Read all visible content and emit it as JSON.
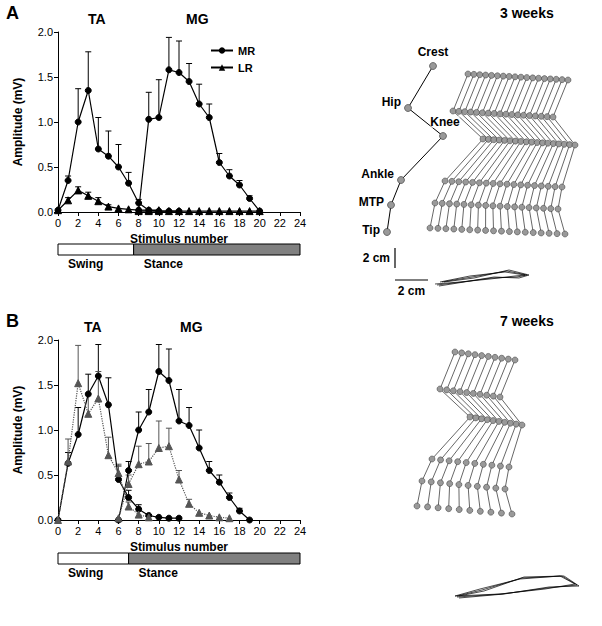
{
  "chart_data": [
    {
      "type": "line",
      "panel": "A",
      "title": "3 weeks",
      "annotations": [
        "TA",
        "MG"
      ],
      "xlabel": "Stimulus number",
      "ylabel": "Amplitude (mV)",
      "xlim": [
        0,
        24
      ],
      "xticks": [
        0,
        2,
        4,
        6,
        8,
        10,
        12,
        14,
        16,
        18,
        20,
        22,
        24
      ],
      "ylim": [
        0,
        2
      ],
      "yticks": [
        {
          "value": 0,
          "label": "0.0"
        },
        {
          "value": 0.5,
          "label": "0.5"
        },
        {
          "value": 1,
          "label": "1.0"
        },
        {
          "value": 1.5,
          "label": "1.5"
        },
        {
          "value": 2,
          "label": "2.0"
        }
      ],
      "grid": false,
      "legend": "top",
      "series": [
        {
          "name": "MR",
          "color": "#000000",
          "marker": "circle",
          "line_style": "solid",
          "x": [
            0,
            1,
            2,
            3,
            4,
            5,
            6,
            7,
            8,
            9,
            10,
            11,
            12
          ],
          "values": [
            0.02,
            0.35,
            1.0,
            1.35,
            0.7,
            0.62,
            0.5,
            0.32,
            0.1,
            0.02,
            0.01,
            0.01,
            0.01
          ],
          "errors": [
            null,
            0.05,
            0.37,
            0.43,
            0.35,
            0.28,
            0.25,
            0.12,
            0.04,
            null,
            null,
            null,
            null
          ]
        },
        {
          "name": "LR",
          "color": "#000000",
          "marker": "triangle",
          "line_style": "solid",
          "x": [
            0,
            1,
            2,
            3,
            4,
            5,
            6,
            7,
            8,
            9,
            10
          ],
          "values": [
            0.02,
            0.13,
            0.24,
            0.18,
            0.12,
            0.06,
            0.04,
            0.03,
            0.02,
            0.02,
            0.02
          ],
          "errors": [
            null,
            0.03,
            0.04,
            0.04,
            0.04,
            0.02,
            null,
            null,
            null,
            null,
            null
          ]
        },
        {
          "name": "MR",
          "color": "#000000",
          "marker": "circle",
          "line_style": "solid",
          "x": [
            8,
            9,
            10,
            11,
            12,
            13,
            14,
            15,
            16,
            17,
            18,
            19,
            20
          ],
          "values": [
            0.02,
            1.03,
            1.05,
            1.58,
            1.55,
            1.45,
            1.2,
            1.05,
            0.55,
            0.4,
            0.3,
            0.15,
            0.01
          ],
          "errors": [
            null,
            0.3,
            0.42,
            0.36,
            0.35,
            0.2,
            0.22,
            0.15,
            0.1,
            0.07,
            0.05,
            0.03,
            null
          ]
        },
        {
          "name": "LR",
          "color": "#000000",
          "marker": "triangle",
          "line_style": "solid",
          "x": [
            8,
            9,
            10,
            11,
            12,
            13,
            14,
            15,
            16,
            17,
            18,
            19,
            20
          ],
          "values": [
            0.01,
            0.01,
            0.01,
            0.01,
            0.01,
            0.01,
            0.01,
            0.01,
            0.01,
            0.01,
            0.01,
            0.01,
            0.01
          ],
          "errors": [
            null,
            null,
            null,
            null,
            null,
            null,
            null,
            null,
            null,
            null,
            null,
            null,
            null
          ]
        }
      ],
      "phases": [
        {
          "label": "Swing",
          "start": 0,
          "end": 7.5,
          "color": "#ffffff"
        },
        {
          "label": "Stance",
          "start": 7.5,
          "end": 24,
          "color": "#808080"
        }
      ],
      "diagram": {
        "joint_labels": [
          "Crest",
          "Hip",
          "Knee",
          "Ankle",
          "MTP",
          "Tip"
        ],
        "scale_labels": [
          "2 cm",
          "2 cm"
        ]
      }
    },
    {
      "type": "line",
      "panel": "B",
      "title": "7 weeks",
      "annotations": [
        "TA",
        "MG"
      ],
      "xlabel": "Stimulus number",
      "ylabel": "Amplitude (mV)",
      "xlim": [
        0,
        24
      ],
      "xticks": [
        0,
        2,
        4,
        6,
        8,
        10,
        12,
        14,
        16,
        18,
        20,
        22,
        24
      ],
      "ylim": [
        0,
        2
      ],
      "yticks": [
        {
          "value": 0,
          "label": "0.0"
        },
        {
          "value": 0.5,
          "label": "0.5"
        },
        {
          "value": 1,
          "label": "1.0"
        },
        {
          "value": 1.5,
          "label": "1.5"
        },
        {
          "value": 2,
          "label": "2.0"
        }
      ],
      "grid": false,
      "series": [
        {
          "name": "MR",
          "color": "#000000",
          "marker": "circle",
          "line_style": "solid",
          "x": [
            0,
            1,
            2,
            3,
            4,
            5,
            6,
            7,
            8,
            9,
            10,
            11,
            12
          ],
          "values": [
            0.0,
            0.63,
            0.95,
            1.4,
            1.6,
            1.28,
            0.45,
            0.25,
            0.12,
            0.05,
            0.03,
            0.02,
            0.02
          ],
          "errors": [
            null,
            0.12,
            0.3,
            0.22,
            0.35,
            0.3,
            0.15,
            0.08,
            0.05,
            null,
            null,
            null,
            null
          ]
        },
        {
          "name": "LR",
          "color": "#555555",
          "marker": "triangle",
          "line_style": "dotted",
          "x": [
            0,
            1,
            2,
            3,
            4,
            5,
            6,
            7,
            8,
            9
          ],
          "values": [
            0.0,
            0.65,
            1.52,
            1.18,
            1.35,
            0.72,
            0.52,
            0.15,
            0.06,
            0.03
          ],
          "errors": [
            null,
            0.25,
            0.42,
            0.2,
            0.3,
            0.2,
            0.1,
            0.05,
            null,
            null
          ]
        },
        {
          "name": "MR",
          "color": "#000000",
          "marker": "circle",
          "line_style": "solid",
          "x": [
            6,
            7,
            8,
            9,
            10,
            11,
            12,
            13,
            14,
            15,
            16,
            17,
            18,
            19
          ],
          "values": [
            0.0,
            0.55,
            1.0,
            1.2,
            1.65,
            1.55,
            1.1,
            1.05,
            0.8,
            0.55,
            0.42,
            0.25,
            0.1,
            0.0
          ],
          "errors": [
            null,
            0.1,
            0.2,
            0.25,
            0.3,
            0.35,
            0.35,
            0.2,
            0.2,
            0.1,
            0.08,
            0.05,
            0.03,
            null
          ]
        },
        {
          "name": "LR",
          "color": "#555555",
          "marker": "triangle",
          "line_style": "dotted",
          "x": [
            6,
            7,
            8,
            9,
            10,
            11,
            12,
            13,
            14,
            15,
            16,
            17
          ],
          "values": [
            0.02,
            0.4,
            0.62,
            0.65,
            0.8,
            0.82,
            0.45,
            0.18,
            0.08,
            0.05,
            0.03,
            0.02
          ],
          "errors": [
            null,
            0.1,
            0.2,
            0.2,
            0.3,
            0.2,
            0.1,
            0.05,
            null,
            null,
            null,
            null
          ]
        }
      ],
      "phases": [
        {
          "label": "Swing",
          "start": 0,
          "end": 7,
          "color": "#ffffff"
        },
        {
          "label": "Stance",
          "start": 7,
          "end": 24,
          "color": "#808080"
        }
      ]
    }
  ]
}
